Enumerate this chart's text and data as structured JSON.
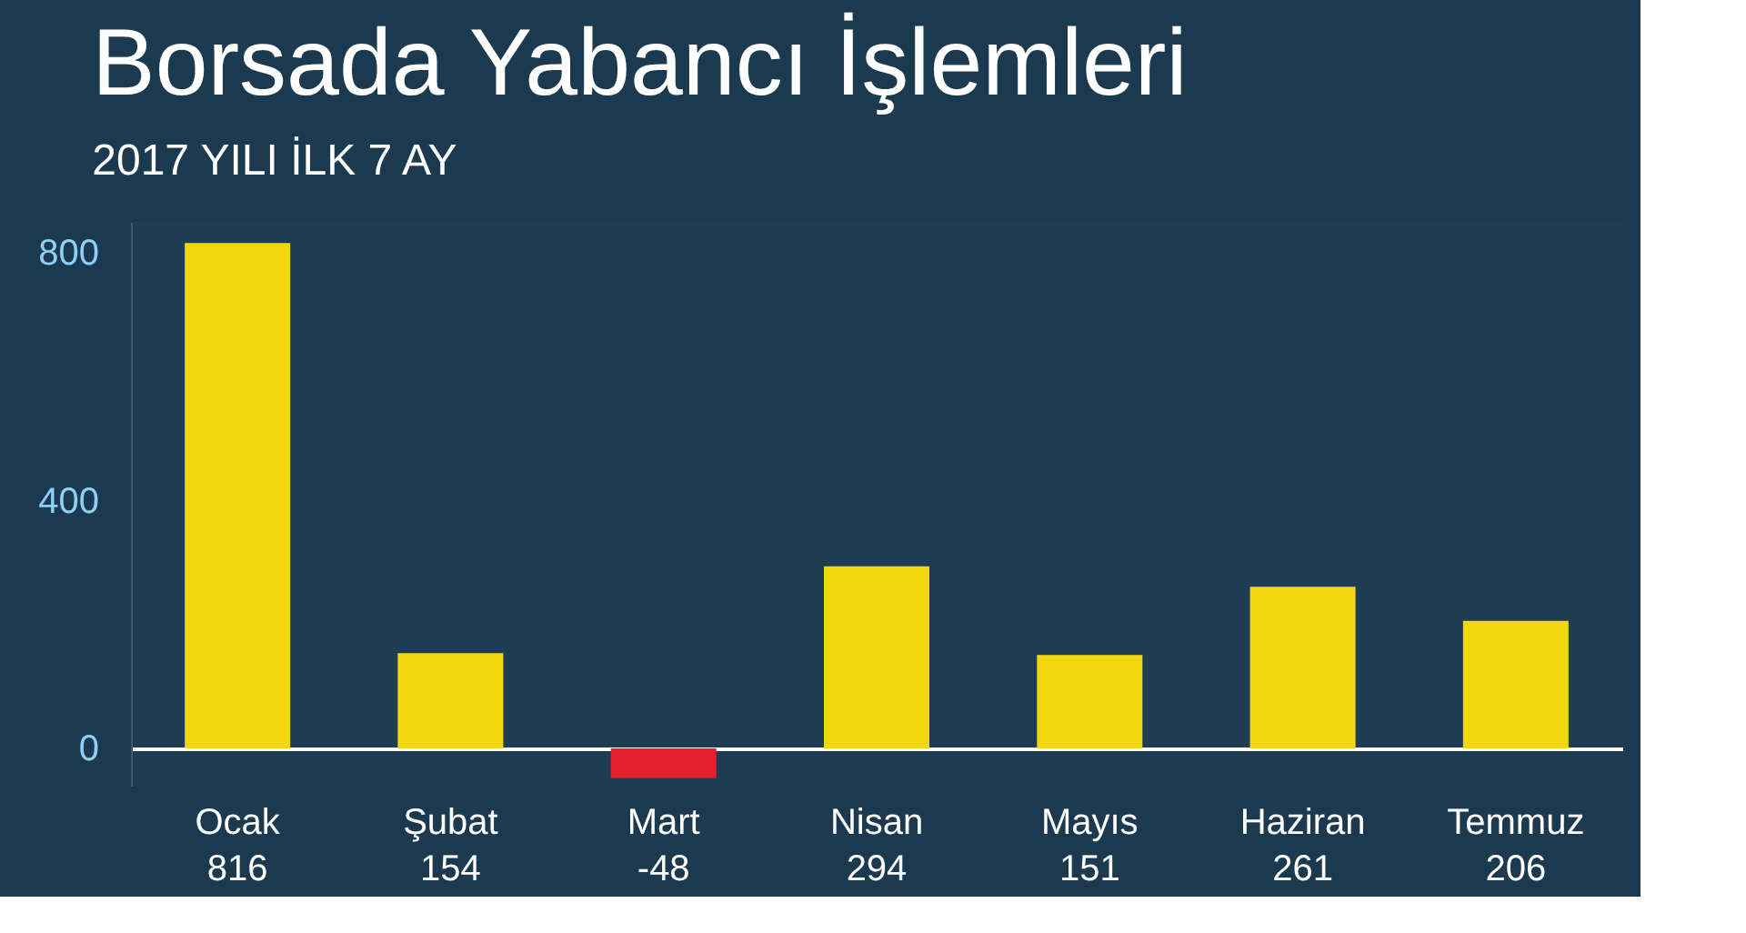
{
  "chart_data": {
    "type": "bar",
    "title": "Borsada Yabancı İşlemleri",
    "subtitle": "2017 YILI İLK 7 AY",
    "categories": [
      "Ocak",
      "Şubat",
      "Mart",
      "Nisan",
      "Mayıs",
      "Haziran",
      "Temmuz"
    ],
    "values": [
      816,
      154,
      -48,
      294,
      151,
      261,
      206
    ],
    "colors": [
      "#f2d80f",
      "#f2d80f",
      "#e3202b",
      "#f2d80f",
      "#f2d80f",
      "#f2d80f",
      "#f2d80f"
    ],
    "ylim": [
      -60,
      850
    ],
    "yticks": [
      0,
      400,
      800
    ],
    "grid": false,
    "data_labels": true
  }
}
